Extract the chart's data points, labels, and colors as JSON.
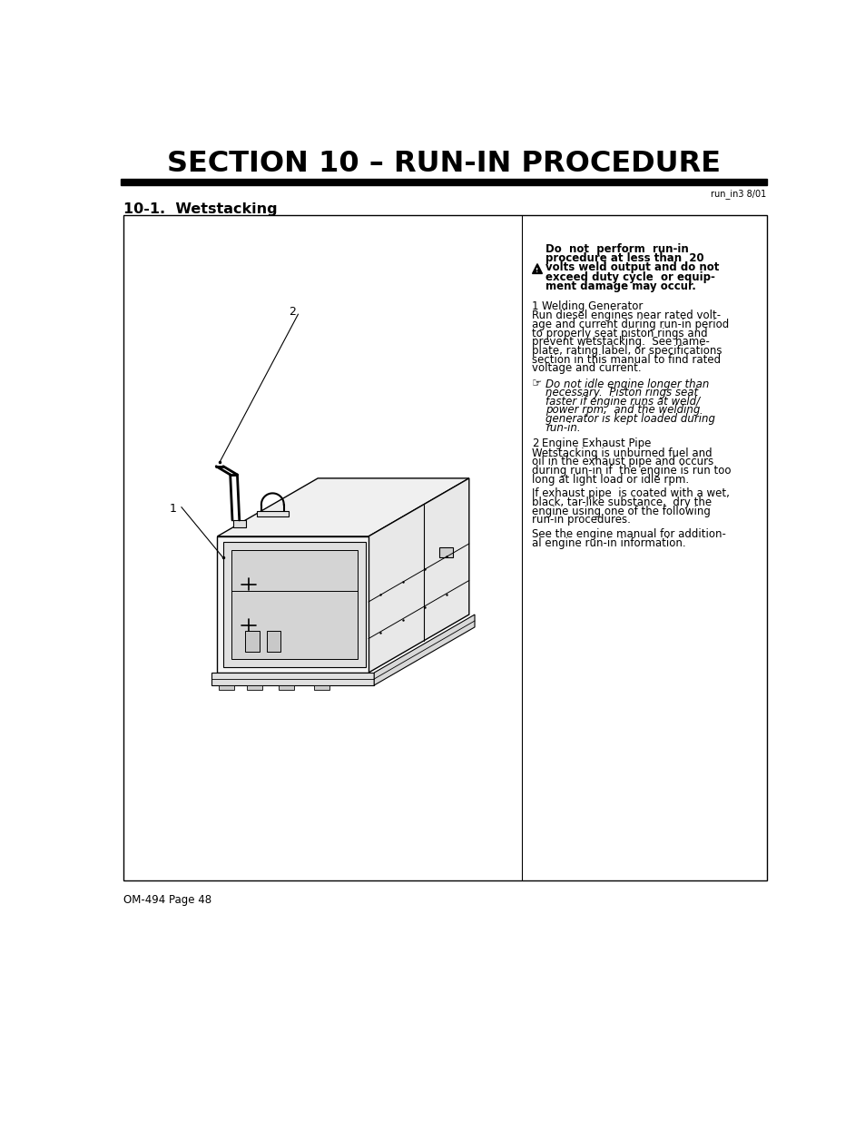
{
  "title": "SECTION 10 – RUN-IN PROCEDURE",
  "subtitle_ref": "run_in3 8/01",
  "section_header": "10-1.  Wetstacking",
  "footer": "OM-494 Page 48",
  "bg_color": "#ffffff",
  "text_color": "#000000",
  "title_fontsize": 22,
  "warning_bold": "Do  not  perform  run-in\nprocedure at less than 20\nvolts weld output and do not\nexceed duty cycle  or equip-\nment damage may occur.",
  "item1_label": "1    Welding Generator",
  "item1_body": "Run diesel engines near rated volt-\nage and current during run-in period\nto properly seat piston rings and\nprevent wetstacking.  See name-\nplate, rating label, or specifications\nsection in this manual to find rated\nvoltage and current.",
  "note_italic": "Do not idle engine longer than\nnecessary.  Piston rings seat\nfaster if engine runs at weld/\npower rpm,  and the welding\ngenerator is kept loaded during\nrun-in.",
  "item2_label": "2    Engine Exhaust Pipe",
  "item2_body1": "Wetstacking is unburned fuel and\noil in the exhaust pipe and occurs\nduring run-in if  the engine is run too\nlong at light load or idle rpm.",
  "item2_body2": "If exhaust pipe  is coated with a wet,\nblack,  tar-like  substance,  dry the\nengine using one of the following\nrun-in procedures.",
  "item2_body3": "See the engine manual for addition-\nal engine run-in information."
}
